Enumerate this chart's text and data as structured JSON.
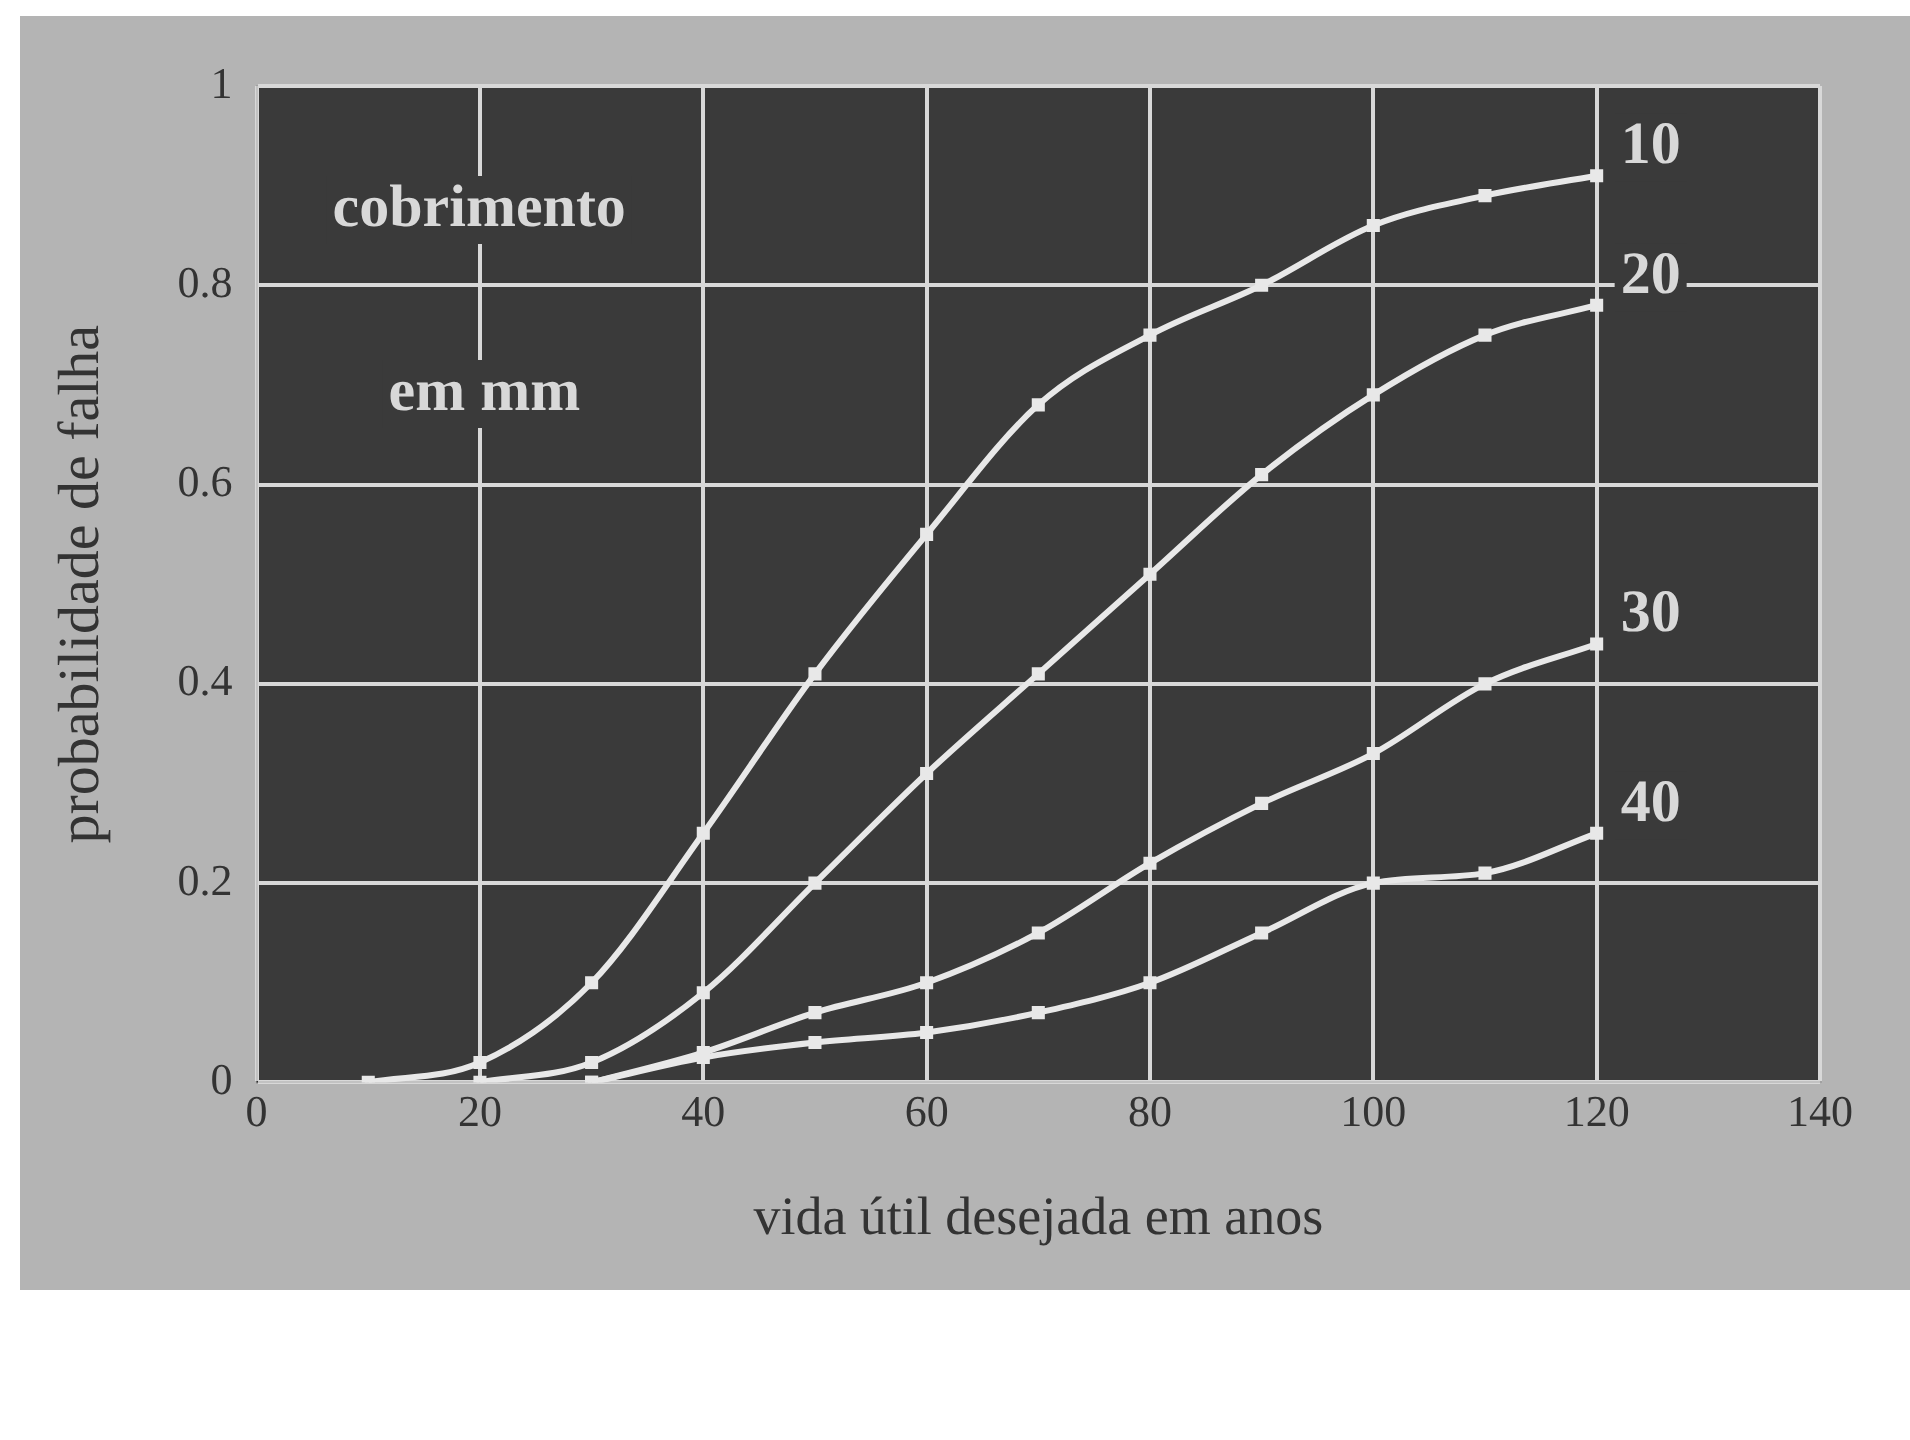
{
  "chart_data": {
    "type": "line",
    "xlabel": "vida útil desejada em anos",
    "ylabel": "probabilidade de falha",
    "annotations": [
      "cobrimento",
      "em mm"
    ],
    "xlim": [
      0,
      140
    ],
    "xticks": [
      0,
      20,
      40,
      60,
      80,
      100,
      120,
      140
    ],
    "ylim": [
      0,
      1
    ],
    "yticks": [
      0,
      0.2,
      0.4,
      0.6,
      0.8,
      1
    ],
    "grid": true,
    "legend": false,
    "marker": "square",
    "line_style": "solid",
    "series": [
      {
        "name": "10",
        "color": "#e8e8e8",
        "x": [
          10,
          20,
          30,
          40,
          50,
          60,
          70,
          80,
          90,
          100,
          110,
          120
        ],
        "values": [
          0,
          0.02,
          0.1,
          0.25,
          0.41,
          0.55,
          0.68,
          0.75,
          0.8,
          0.86,
          0.89,
          0.91
        ]
      },
      {
        "name": "20",
        "color": "#e8e8e8",
        "x": [
          20,
          30,
          40,
          50,
          60,
          70,
          80,
          90,
          100,
          110,
          120
        ],
        "values": [
          0,
          0.02,
          0.09,
          0.2,
          0.31,
          0.41,
          0.51,
          0.61,
          0.69,
          0.75,
          0.78
        ]
      },
      {
        "name": "30",
        "color": "#e8e8e8",
        "x": [
          30,
          40,
          50,
          60,
          70,
          80,
          90,
          100,
          110,
          120
        ],
        "values": [
          0,
          0.03,
          0.07,
          0.1,
          0.15,
          0.22,
          0.28,
          0.33,
          0.4,
          0.44
        ]
      },
      {
        "name": "40",
        "color": "#e8e8e8",
        "x": [
          30,
          40,
          50,
          60,
          70,
          80,
          90,
          100,
          110,
          120
        ],
        "values": [
          0,
          0.025,
          0.04,
          0.05,
          0.07,
          0.1,
          0.15,
          0.2,
          0.21,
          0.25
        ]
      }
    ]
  }
}
